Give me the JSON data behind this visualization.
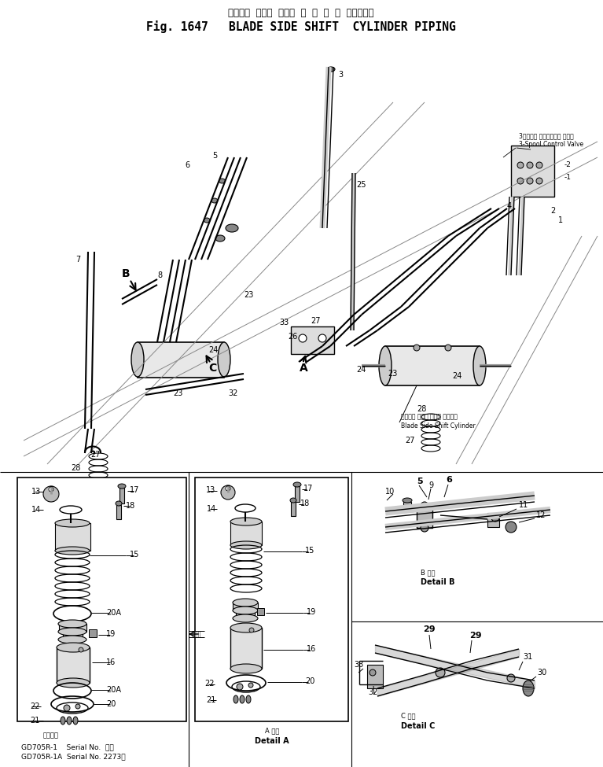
{
  "title_jp": "ブレード  サイド  シフト  シ  リ  ン  ダ  パイピング",
  "title_en": "Fig. 1647   BLADE SIDE SHIFT  CYLINDER PIPING",
  "spool_jp": "3スプール コントロール バルブ",
  "spool_en": "3-Spool Control Valve",
  "blade_jp": "ブレード サイド シフト シリンダ",
  "blade_en": "Blade Side Shift Cylinder",
  "detail_a_jp": "A 詳細",
  "detail_a_en": "Detail A",
  "detail_b_jp": "B 詳細",
  "detail_b_en": "Detail B",
  "detail_c_jp": "C 詳細",
  "detail_c_en": "Detail C",
  "callout_jp": "共用号物",
  "model1": "GD705R-1    Serial No.  　～",
  "model2": "GD705R-1A  Serial No. 2273～",
  "bg": "#ffffff"
}
